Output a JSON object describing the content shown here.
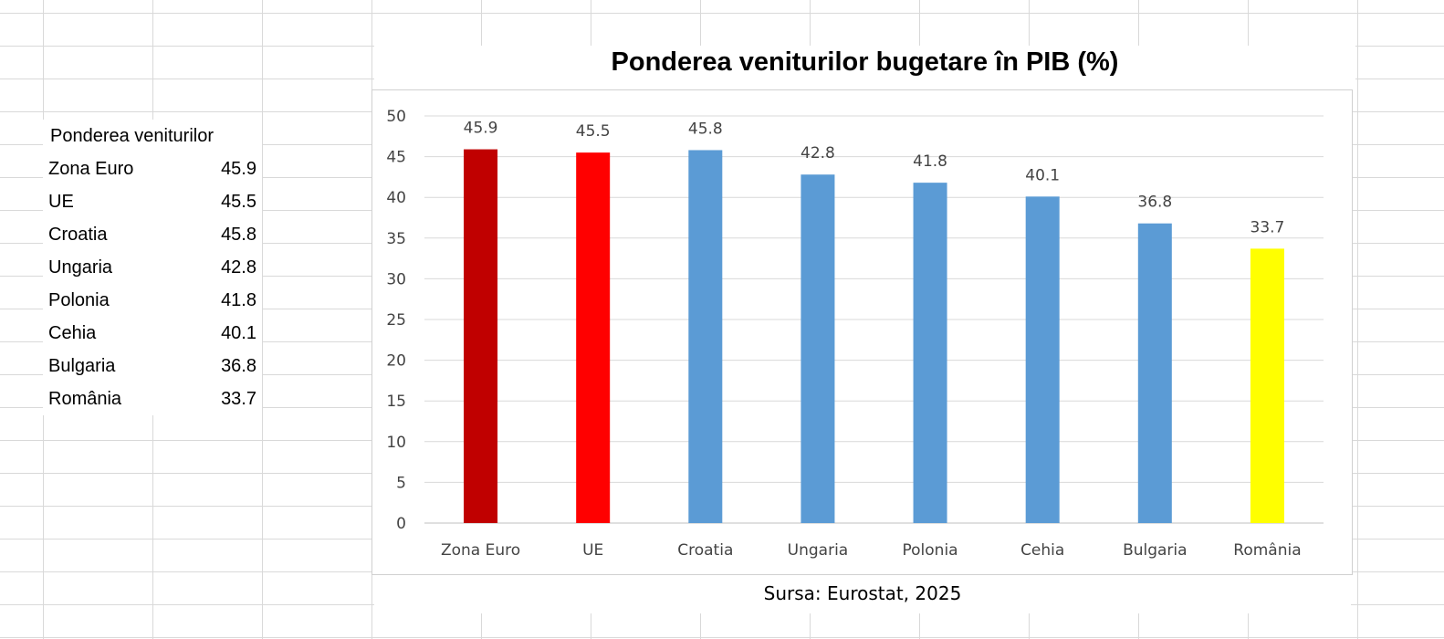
{
  "sheet": {
    "header": "Ponderea veniturilor",
    "rows": [
      {
        "label": "Zona Euro",
        "value": "45.9"
      },
      {
        "label": "UE",
        "value": "45.5"
      },
      {
        "label": "Croatia",
        "value": "45.8"
      },
      {
        "label": "Ungaria",
        "value": "42.8"
      },
      {
        "label": "Polonia",
        "value": "41.8"
      },
      {
        "label": "Cehia",
        "value": "40.1"
      },
      {
        "label": "Bulgaria",
        "value": "36.8"
      },
      {
        "label": "România",
        "value": "33.7"
      }
    ]
  },
  "chart_data": {
    "type": "bar",
    "title": "Ponderea veniturilor bugetare în PIB (%)",
    "categories": [
      "Zona Euro",
      "UE",
      "Croatia",
      "Ungaria",
      "Polonia",
      "Cehia",
      "Bulgaria",
      "România"
    ],
    "values": [
      45.9,
      45.5,
      45.8,
      42.8,
      41.8,
      40.1,
      36.8,
      33.7
    ],
    "bar_colors": [
      "#c00000",
      "#ff0000",
      "#5b9bd5",
      "#5b9bd5",
      "#5b9bd5",
      "#5b9bd5",
      "#5b9bd5",
      "#ffff00"
    ],
    "ylim": [
      0,
      50
    ],
    "yticks": [
      0,
      5,
      10,
      15,
      20,
      25,
      30,
      35,
      40,
      45,
      50
    ],
    "grid": true,
    "data_labels": true,
    "legend": "none",
    "xlabel": "",
    "ylabel": ""
  },
  "source": "Sursa: Eurostat, 2025"
}
